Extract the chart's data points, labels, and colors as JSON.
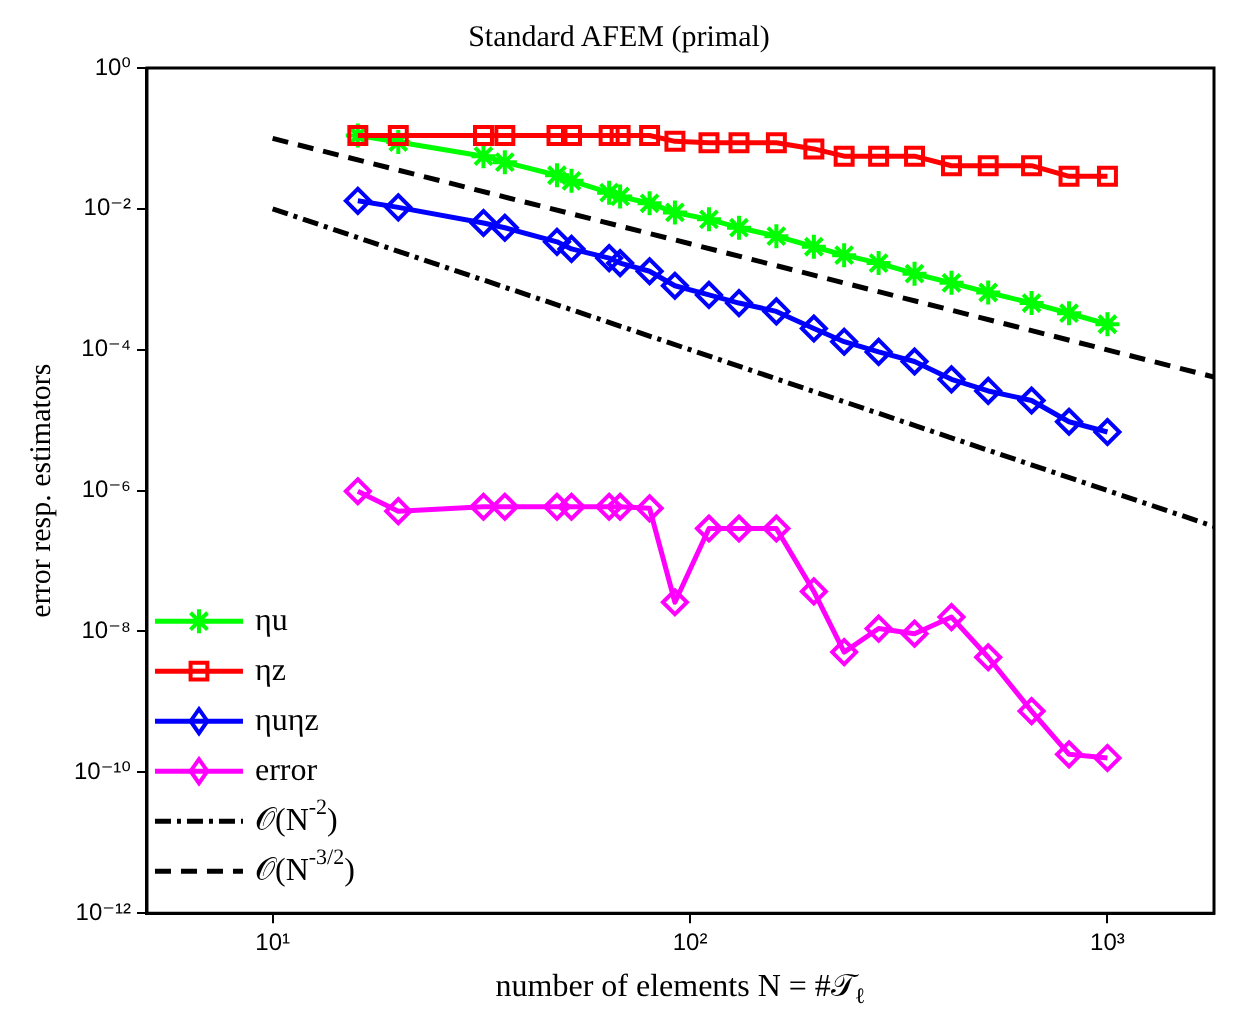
{
  "chart_data": {
    "type": "line",
    "title": "Standard AFEM (primal)",
    "xlabel": "number of elements N = #𝒯$_{ℓ}$",
    "ylabel": "error resp. estimators",
    "log": "xy",
    "grid": false,
    "legend": "bottom left",
    "xlim": [
      5,
      1800
    ],
    "xticks": [
      {
        "value": 10,
        "label": "10¹"
      },
      {
        "value": 100,
        "label": "10²"
      },
      {
        "value": 1000,
        "label": "10³"
      }
    ],
    "ylim": [
      1e-12,
      1
    ],
    "yticks": [
      {
        "value": 1e-12,
        "label": "10⁻¹²"
      },
      {
        "value": 1e-10,
        "label": "10⁻¹⁰"
      },
      {
        "value": 1e-08,
        "label": "10⁻⁸"
      },
      {
        "value": 1e-06,
        "label": "10⁻⁶"
      },
      {
        "value": 0.0001,
        "label": "10⁻⁴"
      },
      {
        "value": 0.01,
        "label": "10⁻²"
      },
      {
        "value": 1,
        "label": "10⁰"
      }
    ],
    "x": [
      16,
      20,
      32,
      36,
      48,
      52,
      64,
      68,
      80,
      92,
      111,
      131,
      161,
      198,
      234,
      283,
      345,
      423,
      518,
      658,
      809,
      1000
    ],
    "series": [
      {
        "name": "ηu",
        "color": "#00ff00",
        "marker": "cross",
        "line_style": "solid",
        "values": [
          0.11,
          0.089,
          0.056,
          0.046,
          0.03,
          0.025,
          0.017,
          0.015,
          0.012,
          0.0089,
          0.0071,
          0.0054,
          0.0041,
          0.0029,
          0.0022,
          0.0017,
          0.0012,
          0.00089,
          0.00065,
          0.00046,
          0.00033,
          0.00023
        ]
      },
      {
        "name": "ηz",
        "color": "#ff0000",
        "marker": "square",
        "line_style": "solid",
        "values": [
          0.11,
          0.11,
          0.11,
          0.11,
          0.11,
          0.11,
          0.11,
          0.11,
          0.11,
          0.091,
          0.087,
          0.087,
          0.087,
          0.071,
          0.056,
          0.056,
          0.056,
          0.041,
          0.041,
          0.041,
          0.029,
          0.029
        ]
      },
      {
        "name": "ηuηz",
        "color": "#0000ff",
        "marker": "diamond",
        "line_style": "solid",
        "values": [
          0.013,
          0.0105,
          0.0063,
          0.0054,
          0.0034,
          0.0027,
          0.002,
          0.0017,
          0.0013,
          0.00081,
          0.0006,
          0.00046,
          0.00035,
          0.0002,
          0.00013,
          9.3e-05,
          6.8e-05,
          3.8e-05,
          2.6e-05,
          1.9e-05,
          9.5e-06,
          6.8e-06
        ]
      },
      {
        "name": "error",
        "color": "#ff00ff",
        "marker": "diamond",
        "line_style": "solid",
        "values": [
          9.8e-07,
          5.1e-07,
          5.9e-07,
          5.9e-07,
          5.9e-07,
          5.9e-07,
          5.9e-07,
          5.9e-07,
          5.6e-07,
          2.6e-08,
          2.9e-07,
          2.9e-07,
          2.9e-07,
          3.7e-08,
          5.1e-09,
          1.1e-08,
          9.3e-09,
          1.6e-08,
          4.3e-09,
          7.4e-10,
          1.8e-10,
          1.6e-10
        ]
      },
      {
        "name": "𝒪(N$^{-2}$)",
        "color": "#000000",
        "marker": "none",
        "line_style": "dashdot",
        "x": [
          10,
          100,
          1800
        ],
        "values": [
          0.01,
          0.0001,
          3.1e-07
        ]
      },
      {
        "name": "𝒪(N$^{-3/2}$)",
        "color": "#000000",
        "marker": "none",
        "line_style": "dashed",
        "x": [
          10,
          100,
          1800
        ],
        "values": [
          0.1,
          0.0032,
          4.1e-05
        ]
      }
    ]
  }
}
